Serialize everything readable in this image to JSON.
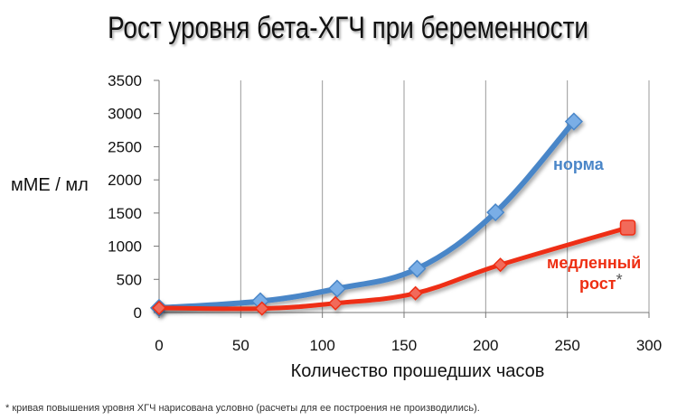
{
  "chart_data": {
    "type": "line",
    "title": "Рост уровня бета-ХГЧ при беременности",
    "xlabel": "Количество прошедших часов",
    "ylabel": "мМЕ / мл",
    "xlim": [
      0,
      300
    ],
    "ylim": [
      0,
      3500
    ],
    "xticks": [
      0,
      50,
      100,
      150,
      200,
      250,
      300
    ],
    "yticks": [
      0,
      500,
      1000,
      1500,
      2000,
      2500,
      3000,
      3500
    ],
    "grid": "vertical",
    "series": [
      {
        "name": "норма",
        "color": "#4a86c8",
        "marker_color": "#7aaee6",
        "x": [
          0,
          62,
          109,
          158,
          206,
          254
        ],
        "y": [
          70,
          170,
          360,
          660,
          1510,
          2880
        ]
      },
      {
        "name": "медленный рост",
        "name_line1": "медленный",
        "name_line2": "рост",
        "name_mark": "*",
        "color": "#ee2e12",
        "marker_color": "#f26a5a",
        "x": [
          0,
          63,
          108,
          157,
          209,
          287
        ],
        "y": [
          70,
          60,
          140,
          290,
          720,
          1280
        ]
      }
    ]
  },
  "footnote": "* кривая повышения уровня ХГЧ нарисована условно (расчеты для ее построения не производились)."
}
